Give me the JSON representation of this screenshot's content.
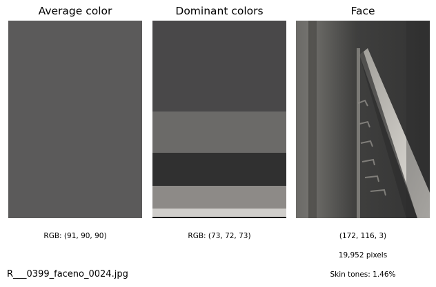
{
  "panels": {
    "average": {
      "title": "Average color",
      "rgb_label": "RGB: (91, 90, 90)",
      "color": "#5b5a5a"
    },
    "dominant": {
      "title": "Dominant colors",
      "rgb_label": "RGB: (73, 72, 73)",
      "swatches": [
        {
          "color": "#494849",
          "share": 0.46
        },
        {
          "color": "#6b6a68",
          "share": 0.21
        },
        {
          "color": "#303030",
          "share": 0.165
        },
        {
          "color": "#8d8a87",
          "share": 0.115
        },
        {
          "color": "#d0cecb",
          "share": 0.043
        },
        {
          "color": "#0a0a0a",
          "share": 0.007
        }
      ]
    },
    "face": {
      "title": "Face",
      "dims_label": "(172, 116, 3)",
      "pixels_label": "19,952 pixels",
      "skin_label": "Skin tones: 1.46%"
    }
  },
  "footer": {
    "filename": "R___0399_faceno_0024.jpg"
  }
}
